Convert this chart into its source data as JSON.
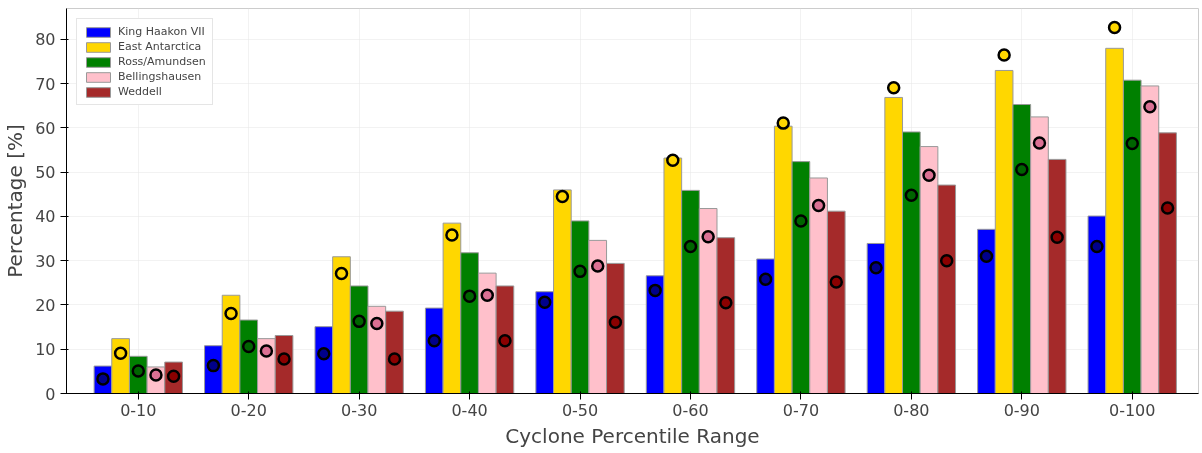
{
  "chart_data": {
    "type": "bar",
    "xlabel": "Cyclone Percentile Range",
    "ylabel": "Percentage [%]",
    "categories": [
      "0-10",
      "0-20",
      "0-30",
      "0-40",
      "0-50",
      "0-60",
      "0-70",
      "0-80",
      "0-90",
      "0-100"
    ],
    "ylim": [
      0,
      87
    ],
    "yticks": [
      0,
      10,
      20,
      30,
      40,
      50,
      60,
      70,
      80
    ],
    "grid": true,
    "legend": "top left",
    "series": [
      {
        "name": "King Haakon VII",
        "color": "#0000ff",
        "values": [
          6.2,
          10.8,
          15.1,
          19.3,
          23.0,
          26.6,
          30.4,
          33.9,
          37.1,
          40.1
        ]
      },
      {
        "name": "East Antarctica",
        "color": "#ffd700",
        "values": [
          12.4,
          22.2,
          30.9,
          38.5,
          46.0,
          53.2,
          60.4,
          66.9,
          73.0,
          78.0
        ]
      },
      {
        "name": "Ross/Amundsen",
        "color": "#008000",
        "values": [
          8.4,
          16.6,
          24.3,
          31.8,
          39.0,
          45.9,
          52.4,
          59.1,
          65.3,
          70.8
        ]
      },
      {
        "name": "Bellingshausen",
        "color": "#ffc0cb",
        "values": [
          6.0,
          12.4,
          19.7,
          27.2,
          34.6,
          41.8,
          48.7,
          55.8,
          62.5,
          69.5
        ]
      },
      {
        "name": "Weddell",
        "color": "#a52a2a",
        "values": [
          7.1,
          13.1,
          18.6,
          24.3,
          29.4,
          35.2,
          41.2,
          47.1,
          52.9,
          58.9
        ]
      },
      {
        "type": "scatter",
        "marker": "circle",
        "color": "#00008b",
        "values": [
          3.3,
          6.3,
          9.0,
          11.9,
          20.6,
          23.3,
          25.8,
          28.4,
          31.0,
          33.2
        ]
      },
      {
        "type": "scatter",
        "marker": "circle",
        "color": "#ffd700",
        "values": [
          9.1,
          18.1,
          27.1,
          35.8,
          44.5,
          52.7,
          61.1,
          69.1,
          76.5,
          82.7
        ]
      },
      {
        "type": "scatter",
        "marker": "circle",
        "color": "#006400",
        "values": [
          5.1,
          10.6,
          16.3,
          22.0,
          27.6,
          33.2,
          39.0,
          44.8,
          50.6,
          56.5
        ]
      },
      {
        "type": "scatter",
        "marker": "circle",
        "color": "#db7093",
        "values": [
          4.2,
          9.6,
          15.8,
          22.2,
          28.8,
          35.4,
          42.5,
          49.3,
          56.6,
          64.8
        ]
      },
      {
        "type": "scatter",
        "marker": "circle",
        "color": "#8b0000",
        "values": [
          3.9,
          7.8,
          7.8,
          11.9,
          16.1,
          20.5,
          25.2,
          30.0,
          35.3,
          41.9
        ]
      }
    ]
  }
}
